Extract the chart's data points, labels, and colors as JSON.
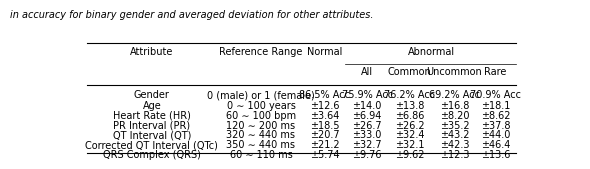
{
  "caption": "in accuracy for binary gender and averaged deviation for other attributes.",
  "rows": [
    [
      "Gender",
      "0 (male) or 1 (female)",
      "86.5% Acc",
      "75.9% Acc",
      "76.2% Acc",
      "69.2% Acc",
      "70.9% Acc"
    ],
    [
      "Age",
      "0 ∼ 100 years",
      "±12.6",
      "±14.0",
      "±13.8",
      "±16.8",
      "±18.1"
    ],
    [
      "Heart Rate (HR)",
      "60 ∼ 100 bpm",
      "±3.64",
      "±6.94",
      "±6.86",
      "±8.20",
      "±8.62"
    ],
    [
      "PR Interval (PR)",
      "120 ∼ 200 ms",
      "±18.5",
      "±26.7",
      "±26.2",
      "±35.2",
      "±37.8"
    ],
    [
      "QT Interval (QT)",
      "320 ∼ 440 ms",
      "±20.7",
      "±33.0",
      "±32.4",
      "±43.2",
      "±44.0"
    ],
    [
      "Corrected QT Interval (QTc)",
      "350 ∼ 440 ms",
      "±21.2",
      "±32.7",
      "±32.1",
      "±42.3",
      "±46.4"
    ],
    [
      "QRS Complex (QRS)",
      "60 ∼ 110 ms",
      "±5.74",
      "±9.76",
      "±9.62",
      "±12.3",
      "±13.6"
    ]
  ],
  "font_size": 7.0,
  "background_color": "#ffffff"
}
